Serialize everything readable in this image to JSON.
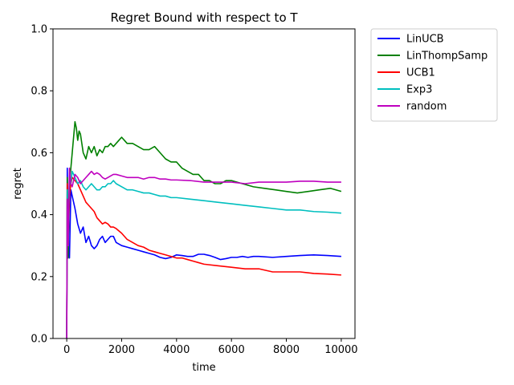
{
  "chart_data": {
    "type": "line",
    "title": "Regret Bound with respect to T",
    "xlabel": "time",
    "ylabel": "regret",
    "xlim": [
      -500,
      10500
    ],
    "ylim": [
      0,
      1.0
    ],
    "xticks": [
      0,
      2000,
      4000,
      6000,
      8000,
      10000
    ],
    "yticks": [
      0.0,
      0.2,
      0.4,
      0.6,
      0.8,
      1.0
    ],
    "xtick_labels": [
      "0",
      "2000",
      "4000",
      "6000",
      "8000",
      "10000"
    ],
    "ytick_labels": [
      "0.0",
      "0.2",
      "0.4",
      "0.6",
      "0.8",
      "1.0"
    ],
    "grid": false,
    "legend": "outside-top-right",
    "series": [
      {
        "name": "LinUCB",
        "color": "#0000ff",
        "x": [
          0,
          20,
          50,
          100,
          150,
          200,
          300,
          400,
          500,
          600,
          700,
          800,
          900,
          1000,
          1100,
          1200,
          1300,
          1400,
          1500,
          1600,
          1700,
          1800,
          2000,
          2200,
          2400,
          2600,
          2800,
          3000,
          3200,
          3400,
          3600,
          3800,
          4000,
          4200,
          4400,
          4600,
          4800,
          5000,
          5200,
          5400,
          5600,
          5800,
          6000,
          6200,
          6400,
          6600,
          6800,
          7000,
          7500,
          8000,
          8500,
          9000,
          9500,
          10000
        ],
        "y": [
          0.0,
          0.55,
          0.3,
          0.26,
          0.48,
          0.46,
          0.42,
          0.37,
          0.34,
          0.36,
          0.31,
          0.33,
          0.3,
          0.29,
          0.3,
          0.32,
          0.33,
          0.31,
          0.32,
          0.33,
          0.33,
          0.31,
          0.3,
          0.295,
          0.29,
          0.285,
          0.28,
          0.275,
          0.27,
          0.262,
          0.258,
          0.262,
          0.27,
          0.268,
          0.265,
          0.265,
          0.272,
          0.272,
          0.268,
          0.262,
          0.255,
          0.258,
          0.262,
          0.262,
          0.265,
          0.262,
          0.265,
          0.265,
          0.262,
          0.265,
          0.268,
          0.27,
          0.268,
          0.265
        ]
      },
      {
        "name": "LinThompSamp",
        "color": "#008000",
        "x": [
          0,
          20,
          50,
          100,
          150,
          200,
          250,
          300,
          350,
          400,
          450,
          500,
          550,
          600,
          700,
          800,
          900,
          1000,
          1100,
          1200,
          1300,
          1400,
          1500,
          1600,
          1700,
          1800,
          1900,
          2000,
          2100,
          2200,
          2400,
          2600,
          2800,
          3000,
          3200,
          3400,
          3600,
          3800,
          4000,
          4200,
          4400,
          4600,
          4800,
          5000,
          5200,
          5400,
          5600,
          5800,
          6000,
          6400,
          6800,
          7200,
          7600,
          8000,
          8400,
          8800,
          9200,
          9600,
          10000
        ],
        "y": [
          0.0,
          0.52,
          0.26,
          0.5,
          0.55,
          0.6,
          0.65,
          0.7,
          0.68,
          0.64,
          0.67,
          0.66,
          0.63,
          0.6,
          0.58,
          0.62,
          0.6,
          0.62,
          0.59,
          0.61,
          0.6,
          0.62,
          0.62,
          0.63,
          0.62,
          0.63,
          0.64,
          0.65,
          0.64,
          0.63,
          0.63,
          0.62,
          0.61,
          0.61,
          0.62,
          0.6,
          0.58,
          0.57,
          0.57,
          0.55,
          0.54,
          0.53,
          0.53,
          0.51,
          0.51,
          0.5,
          0.5,
          0.51,
          0.51,
          0.5,
          0.49,
          0.485,
          0.48,
          0.475,
          0.47,
          0.475,
          0.48,
          0.485,
          0.475
        ]
      },
      {
        "name": "UCB1",
        "color": "#ff0000",
        "x": [
          0,
          20,
          50,
          100,
          150,
          200,
          300,
          400,
          500,
          600,
          700,
          800,
          900,
          1000,
          1100,
          1200,
          1300,
          1400,
          1500,
          1600,
          1700,
          1800,
          2000,
          2200,
          2400,
          2600,
          2800,
          3000,
          3200,
          3400,
          3600,
          3800,
          4000,
          4200,
          4400,
          4600,
          4800,
          5000,
          5500,
          6000,
          6500,
          7000,
          7500,
          8000,
          8500,
          9000,
          9500,
          10000
        ],
        "y": [
          0.0,
          0.5,
          0.3,
          0.46,
          0.5,
          0.52,
          0.51,
          0.5,
          0.48,
          0.46,
          0.44,
          0.43,
          0.42,
          0.41,
          0.39,
          0.38,
          0.37,
          0.375,
          0.37,
          0.36,
          0.36,
          0.355,
          0.34,
          0.32,
          0.31,
          0.3,
          0.295,
          0.285,
          0.28,
          0.275,
          0.27,
          0.265,
          0.26,
          0.26,
          0.255,
          0.25,
          0.245,
          0.24,
          0.235,
          0.23,
          0.225,
          0.225,
          0.215,
          0.215,
          0.215,
          0.21,
          0.208,
          0.205
        ]
      },
      {
        "name": "Exp3",
        "color": "#00bfbf",
        "x": [
          0,
          20,
          50,
          100,
          150,
          200,
          300,
          400,
          500,
          600,
          700,
          800,
          900,
          1000,
          1100,
          1200,
          1300,
          1400,
          1500,
          1600,
          1700,
          1800,
          2000,
          2200,
          2400,
          2600,
          2800,
          3000,
          3200,
          3400,
          3600,
          3800,
          4000,
          4500,
          5000,
          5500,
          6000,
          6500,
          7000,
          7500,
          8000,
          8500,
          9000,
          9500,
          10000
        ],
        "y": [
          0.0,
          0.48,
          0.3,
          0.52,
          0.5,
          0.54,
          0.52,
          0.5,
          0.51,
          0.49,
          0.48,
          0.49,
          0.5,
          0.49,
          0.48,
          0.48,
          0.49,
          0.49,
          0.5,
          0.5,
          0.51,
          0.5,
          0.49,
          0.48,
          0.48,
          0.475,
          0.47,
          0.47,
          0.465,
          0.46,
          0.46,
          0.455,
          0.455,
          0.45,
          0.445,
          0.44,
          0.435,
          0.43,
          0.425,
          0.42,
          0.415,
          0.415,
          0.41,
          0.408,
          0.405
        ]
      },
      {
        "name": "random",
        "color": "#bf00bf",
        "x": [
          0,
          20,
          50,
          100,
          150,
          200,
          300,
          400,
          500,
          600,
          700,
          800,
          900,
          1000,
          1100,
          1200,
          1300,
          1400,
          1500,
          1600,
          1700,
          1800,
          2000,
          2200,
          2400,
          2600,
          2800,
          3000,
          3200,
          3400,
          3600,
          3800,
          4000,
          4500,
          5000,
          5500,
          6000,
          6500,
          7000,
          7500,
          8000,
          8500,
          9000,
          9500,
          10000
        ],
        "y": [
          0.0,
          0.45,
          0.3,
          0.55,
          0.5,
          0.49,
          0.53,
          0.52,
          0.5,
          0.51,
          0.52,
          0.53,
          0.54,
          0.53,
          0.535,
          0.53,
          0.52,
          0.515,
          0.52,
          0.525,
          0.53,
          0.53,
          0.525,
          0.52,
          0.52,
          0.52,
          0.515,
          0.52,
          0.52,
          0.515,
          0.515,
          0.512,
          0.512,
          0.51,
          0.505,
          0.505,
          0.505,
          0.5,
          0.505,
          0.505,
          0.505,
          0.508,
          0.508,
          0.505,
          0.505
        ]
      }
    ]
  }
}
